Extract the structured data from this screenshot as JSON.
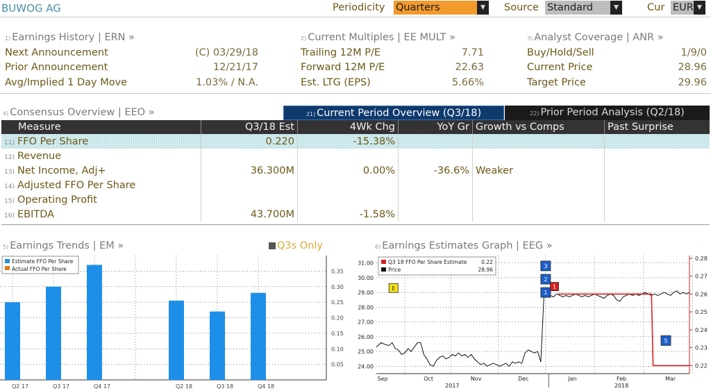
{
  "header": {
    "ticker": "BUWOG AG",
    "periodicity_label": "Periodicity",
    "periodicity_value": "Quarters",
    "source_label": "Source",
    "source_value": "Standard",
    "cur_label": "Cur",
    "cur_value": "EUR"
  },
  "panels": {
    "earnings_history": {
      "num": "1)",
      "title": "Earnings History | ERN »",
      "rows": [
        {
          "label": "Next Announcement",
          "value": "(C)  03/29/18"
        },
        {
          "label": "Prior Announcement",
          "value": "12/21/17"
        },
        {
          "label": "Avg/Implied 1 Day Move",
          "value": "1.03% / N.A."
        }
      ]
    },
    "current_multiples": {
      "num": "2)",
      "title": "Current Multiples | EE MULT »",
      "rows": [
        {
          "label": "Trailing 12M P/E",
          "value": "7.71"
        },
        {
          "label": "Forward 12M P/E",
          "value": "22.63"
        },
        {
          "label": "Est. LTG (EPS)",
          "value": "5.66%"
        }
      ]
    },
    "analyst_coverage": {
      "num": "3)",
      "title": "Analyst Coverage | ANR »",
      "rows": [
        {
          "label": "Buy/Hold/Sell",
          "value": "1/9/0"
        },
        {
          "label": "Current Price",
          "value": "28.96"
        },
        {
          "label": "Target Price",
          "value": "29.96"
        }
      ]
    }
  },
  "consensus": {
    "num": "4)",
    "title": "Consensus Overview | EEO »",
    "tab1_num": "21)",
    "tab1": "Current Period Overview (Q3/18)",
    "tab2_num": "22)",
    "tab2": "Prior Period Analysis (Q2/18)",
    "columns": [
      "Measure",
      "Q3/18 Est",
      "4Wk Chg",
      "YoY Gr",
      "Growth vs Comps",
      "Past Surprise"
    ],
    "rows": [
      {
        "num": "11)",
        "measure": "FFO Per Share",
        "est": "0.220",
        "chg": "-15.38%",
        "yoy": "",
        "comps": "",
        "surprise": ""
      },
      {
        "num": "12)",
        "measure": "Revenue",
        "est": "",
        "chg": "",
        "yoy": "",
        "comps": "",
        "surprise": ""
      },
      {
        "num": "13)",
        "measure": "Net Income, Adj+",
        "est": "36.300M",
        "chg": "0.00%",
        "yoy": "-36.6%",
        "comps": "Weaker",
        "surprise": ""
      },
      {
        "num": "14)",
        "measure": "Adjusted FFO Per Share",
        "est": "",
        "chg": "",
        "yoy": "",
        "comps": "",
        "surprise": ""
      },
      {
        "num": "15)",
        "measure": "Operating Profit",
        "est": "",
        "chg": "",
        "yoy": "",
        "comps": "",
        "surprise": ""
      },
      {
        "num": "16)",
        "measure": "EBITDA",
        "est": "43.700M",
        "chg": "-1.58%",
        "yoy": "",
        "comps": "",
        "surprise": ""
      }
    ]
  },
  "trends": {
    "num": "5)",
    "title": "Earnings Trends | EM »",
    "filter_label": "Q3s Only"
  },
  "graph": {
    "num": "6)",
    "title": "Earnings Estimates Graph | EEG »"
  },
  "chart_data": [
    {
      "type": "bar",
      "categories": [
        "Q2 17",
        "Q3 17",
        "Q4 17",
        "",
        "Q2 18",
        "Q3 18",
        "Q4 18"
      ],
      "series": [
        {
          "name": "Estimate FFO Per Share",
          "values": [
            0.25,
            0.3,
            0.37,
            null,
            0.255,
            0.22,
            0.28
          ]
        },
        {
          "name": "Actual FFO Per Share",
          "values": [
            null,
            null,
            null,
            null,
            null,
            null,
            null
          ]
        }
      ],
      "yticks": [
        "0.35",
        "0.30",
        "0.25",
        "0.20",
        "0.15",
        "0.10",
        "0.05"
      ],
      "ylim": [
        0,
        0.4
      ],
      "colors": {
        "estimate": "#1e8fe8",
        "actual": "#e0781e"
      }
    },
    {
      "type": "line",
      "legend": [
        {
          "name": "Q3 18 FFO Per Share Estimate",
          "value": "0.22",
          "color": "#d42020"
        },
        {
          "name": "Price",
          "value": "28.96",
          "color": "#111111"
        }
      ],
      "left_ticks": [
        "31.00",
        "30.00",
        "29.00",
        "28.00",
        "27.00",
        "26.00",
        "25.00",
        "24.00"
      ],
      "left_ylim": [
        23.5,
        31.5
      ],
      "right_ticks": [
        "0.28",
        "0.27",
        "0.26",
        "0.25",
        "0.24",
        "0.23",
        "0.22"
      ],
      "right_ylim": [
        0.2155,
        0.2815
      ],
      "x_months": [
        "Sep",
        "Oct",
        "Nov",
        "Dec",
        "Jan",
        "Feb",
        "Mar"
      ],
      "x_years": [
        "2017",
        "2018"
      ],
      "price_series": {
        "x": [
          0,
          3,
          5,
          8,
          10,
          12,
          14,
          16,
          18,
          20,
          22,
          24,
          26,
          28,
          30,
          32,
          34,
          36,
          38,
          40,
          42,
          44,
          46,
          48,
          50,
          52,
          54,
          56,
          58,
          60,
          62,
          64,
          66,
          68,
          70,
          72,
          74,
          76,
          78,
          80,
          82,
          84,
          86,
          88,
          90,
          92,
          94,
          96,
          98,
          100,
          102,
          104,
          106,
          108,
          110,
          112,
          114,
          116,
          118,
          120,
          122,
          124,
          126,
          128,
          130,
          132,
          134,
          136,
          138,
          140,
          142,
          144,
          146,
          148,
          150,
          152,
          154,
          156,
          158,
          160,
          162,
          164,
          166,
          168,
          170,
          172,
          174,
          176,
          178,
          180,
          182,
          184,
          186,
          188,
          190,
          192,
          194,
          196,
          198
        ],
        "y": [
          25.3,
          25.6,
          25.5,
          25.4,
          25.6,
          25.2,
          25.1,
          24.8,
          24.9,
          25.2,
          25.0,
          25.3,
          25.6,
          25.6,
          24.8,
          24.5,
          24.1,
          24.0,
          24.4,
          24.6,
          24.7,
          24.5,
          24.6,
          24.8,
          24.7,
          24.9,
          24.7,
          24.8,
          24.6,
          24.8,
          24.5,
          24.3,
          24.1,
          24.2,
          24.0,
          24.1,
          24.2,
          24.1,
          24.0,
          24.1,
          24.2,
          24.0,
          24.3,
          24.2,
          24.3,
          24.2,
          24.9,
          25.1,
          25.0,
          24.9,
          25.0,
          24.3,
          28.8,
          28.7,
          28.8,
          28.7,
          28.9,
          28.8,
          28.7,
          28.8,
          28.7,
          28.8,
          28.9,
          28.8,
          28.7,
          28.8,
          28.7,
          28.8,
          28.9,
          28.8,
          28.7,
          28.6,
          28.8,
          28.9,
          28.8,
          28.5,
          28.4,
          28.7,
          28.8,
          28.9,
          28.8,
          28.9,
          28.8,
          28.9,
          29.0,
          28.9,
          28.8,
          28.9,
          28.8,
          28.9,
          29.0,
          28.9,
          28.8,
          29.0,
          29.1,
          28.9,
          29.0,
          28.9,
          29.0
        ]
      },
      "estimate_series": {
        "x": [
          115,
          174,
          175,
          198
        ],
        "y": [
          0.26,
          0.26,
          0.22,
          0.22
        ]
      },
      "event_markers": [
        {
          "label": "E",
          "type": "earnings"
        },
        {
          "label": "3",
          "type": "estimate-change"
        },
        {
          "label": "2",
          "type": "estimate-change"
        },
        {
          "label": "1",
          "type": "estimate-change"
        },
        {
          "label": "1",
          "type": "rating"
        },
        {
          "label": "5",
          "type": "estimate-change"
        }
      ]
    }
  ]
}
